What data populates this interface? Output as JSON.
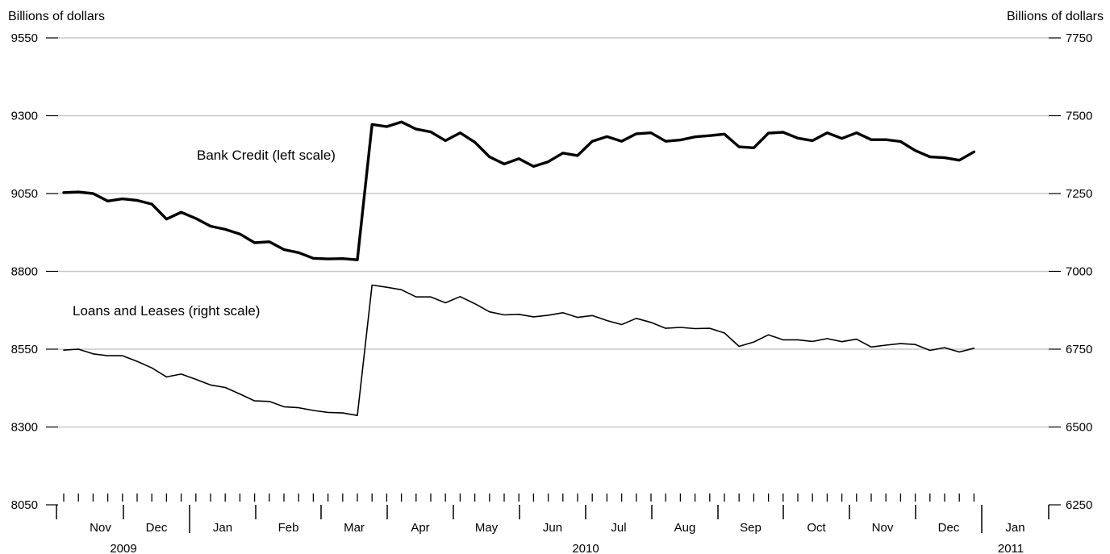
{
  "chart_data": {
    "type": "line",
    "left_axis": {
      "label": "Billions of dollars",
      "range": [
        8050,
        9550
      ],
      "ticks": [
        8050,
        8300,
        8550,
        8800,
        9050,
        9300,
        9550
      ]
    },
    "right_axis": {
      "label": "Billions of dollars",
      "range": [
        6250,
        7750
      ],
      "ticks": [
        6250,
        6500,
        6750,
        7000,
        7250,
        7500,
        7750
      ]
    },
    "grid": true,
    "months": [
      "Nov",
      "Dec",
      "Jan",
      "Feb",
      "Mar",
      "Apr",
      "May",
      "Jun",
      "Jul",
      "Aug",
      "Sep",
      "Oct",
      "Nov",
      "Dec",
      "Jan"
    ],
    "years": [
      "2009",
      "2010",
      "2011"
    ],
    "series": [
      {
        "name": "Bank Credit (left scale)",
        "axis": "left",
        "values": [
          9053,
          9055,
          9050,
          9026,
          9033,
          9028,
          9016,
          8968,
          8990,
          8970,
          8945,
          8935,
          8920,
          8892,
          8895,
          8870,
          8860,
          8842,
          8840,
          8841,
          8837,
          9272,
          9265,
          9280,
          9257,
          9248,
          9220,
          9245,
          9215,
          9168,
          9145,
          9162,
          9137,
          9152,
          9180,
          9172,
          9218,
          9233,
          9218,
          9242,
          9245,
          9218,
          9222,
          9232,
          9236,
          9241,
          9200,
          9197,
          9244,
          9247,
          9228,
          9220,
          9245,
          9227,
          9245,
          9223,
          9223,
          9217,
          9188,
          9168,
          9165,
          9157,
          9184
        ]
      },
      {
        "name": "Loans and Leases (right scale)",
        "axis": "right",
        "values": [
          6747,
          6750,
          6735,
          6729,
          6729,
          6711,
          6690,
          6661,
          6670,
          6653,
          6635,
          6627,
          6606,
          6584,
          6582,
          6565,
          6562,
          6553,
          6547,
          6545,
          6537,
          6956,
          6949,
          6941,
          6918,
          6918,
          6899,
          6919,
          6896,
          6870,
          6860,
          6862,
          6854,
          6859,
          6867,
          6852,
          6858,
          6842,
          6829,
          6849,
          6836,
          6817,
          6820,
          6816,
          6817,
          6802,
          6759,
          6773,
          6796,
          6780,
          6780,
          6775,
          6784,
          6774,
          6782,
          6757,
          6763,
          6768,
          6765,
          6746,
          6755,
          6741,
          6753
        ]
      }
    ]
  }
}
